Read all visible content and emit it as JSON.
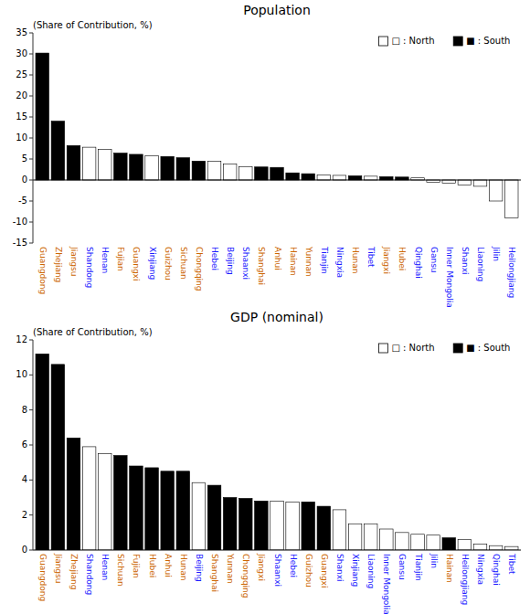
{
  "chart_data": [
    {
      "type": "bar",
      "title": "Population",
      "y_label": "(Share of Contribution, %)",
      "categories": [
        "Guangdong",
        "Zhejiang",
        "Jiangsu",
        "Shandong",
        "Henan",
        "Fujian",
        "Guangxi",
        "Xinjiang",
        "Guizhou",
        "Sichuan",
        "Chongqing",
        "Hebei",
        "Beijing",
        "Shaanxi",
        "Shanghai",
        "Anhui",
        "Hainan",
        "Yunnan",
        "Tianjin",
        "Ningxia",
        "Hunan",
        "Tibet",
        "Jiangxi",
        "Hubei",
        "Qinghai",
        "Gansu",
        "Inner Mongolia",
        "Shanxi",
        "Liaoning",
        "Jilin",
        "Heilongjiang"
      ],
      "series": [
        {
          "name": "□ : North",
          "color": "#ffffff",
          "values": [
            null,
            null,
            null,
            7.8,
            7.3,
            null,
            null,
            5.8,
            null,
            null,
            null,
            4.5,
            3.8,
            3.2,
            null,
            null,
            null,
            null,
            1.2,
            1.1,
            null,
            0.9,
            null,
            null,
            0.5,
            -0.5,
            -0.8,
            -1.2,
            -1.5,
            -5.0,
            -9.0
          ]
        },
        {
          "name": "■ : South",
          "color": "#000000",
          "values": [
            30.2,
            14.0,
            8.2,
            null,
            null,
            6.4,
            6.1,
            null,
            5.6,
            5.3,
            4.5,
            null,
            null,
            null,
            3.1,
            3.0,
            1.7,
            1.5,
            null,
            null,
            1.0,
            null,
            0.8,
            0.7,
            null,
            null,
            null,
            null,
            null,
            null,
            null
          ]
        }
      ],
      "ylim": [
        -15,
        35
      ],
      "yticks": [
        -15,
        -10,
        -5,
        0,
        5,
        10,
        15,
        20,
        25,
        30,
        35
      ],
      "grid": false,
      "legend": "upper right",
      "stacked": true
    },
    {
      "type": "bar",
      "title": "GDP (nominal)",
      "y_label": "(Share of Contribution, %)",
      "categories": [
        "Guangdong",
        "Jiangsu",
        "Zhejiang",
        "Shandong",
        "Henan",
        "Sichuan",
        "Fujian",
        "Hubei",
        "Anhui",
        "Hunan",
        "Beijing",
        "Shanghai",
        "Yunnan",
        "Chongqing",
        "Jiangxi",
        "Shaanxi",
        "Hebei",
        "Guizhou",
        "Guangxi",
        "Shanxi",
        "Xinjiang",
        "Liaoning",
        "Inner Mongolia",
        "Gansu",
        "Tianjin",
        "Jilin",
        "Hainan",
        "Heilongjiang",
        "Ningxia",
        "Qinghai",
        "Tibet"
      ],
      "series": [
        {
          "name": "□ : North",
          "color": "#ffffff",
          "values": [
            null,
            null,
            null,
            5.9,
            5.5,
            null,
            null,
            null,
            null,
            null,
            3.85,
            null,
            null,
            null,
            null,
            2.8,
            2.75,
            null,
            null,
            2.3,
            1.5,
            1.5,
            1.2,
            1.0,
            0.9,
            0.85,
            null,
            0.6,
            0.35,
            0.25,
            0.2
          ]
        },
        {
          "name": "■ : South",
          "color": "#000000",
          "values": [
            11.2,
            10.6,
            6.4,
            null,
            null,
            5.4,
            4.8,
            4.7,
            4.5,
            4.5,
            null,
            3.7,
            3.0,
            2.95,
            2.8,
            null,
            null,
            2.75,
            2.5,
            null,
            null,
            null,
            null,
            null,
            null,
            null,
            0.7,
            null,
            null,
            null,
            null
          ]
        }
      ],
      "ylim": [
        0,
        12
      ],
      "yticks": [
        0,
        2,
        4,
        6,
        8,
        10,
        12
      ],
      "grid": false,
      "legend": "upper right",
      "stacked": true
    }
  ]
}
